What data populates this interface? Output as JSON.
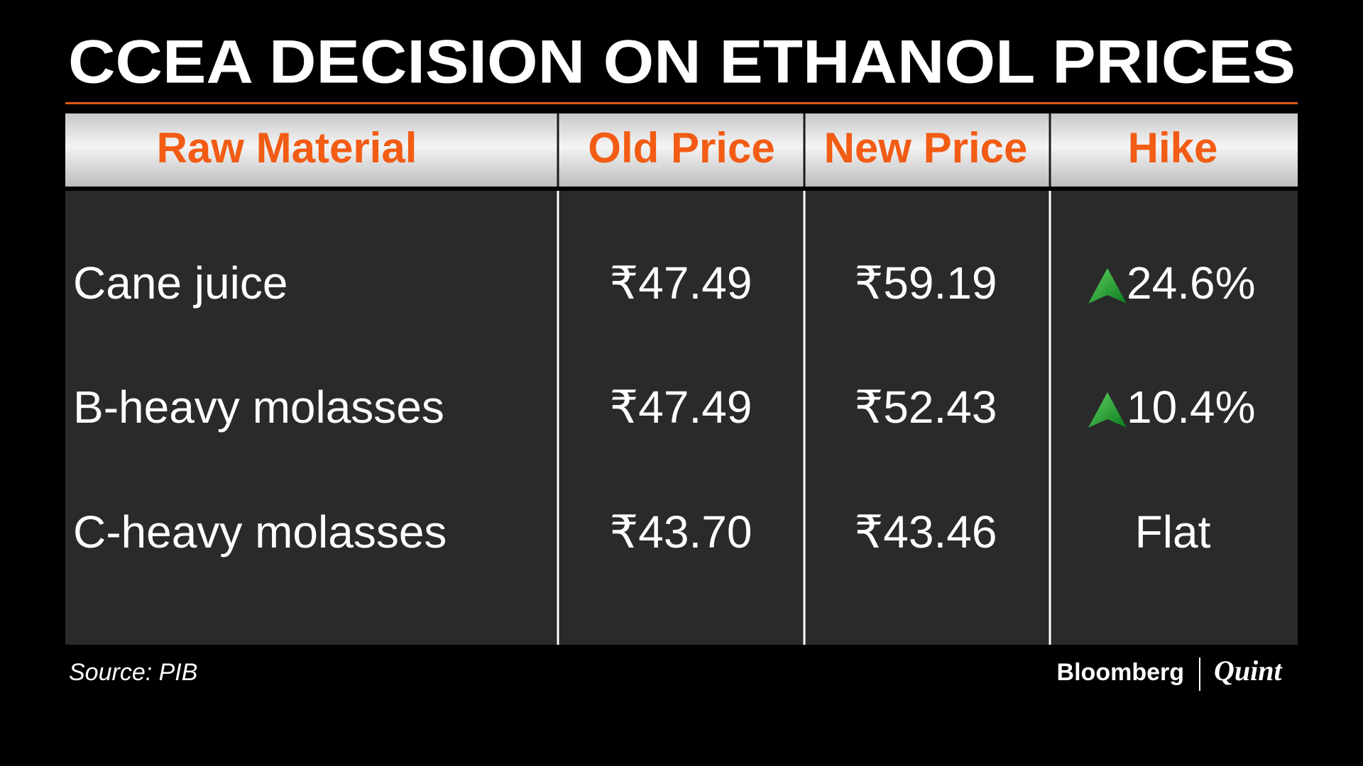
{
  "header": {
    "title": "CCEA DECISION ON ETHANOL PRICES"
  },
  "table": {
    "columns": [
      "Raw Material",
      "Old Price",
      "New Price",
      "Hike"
    ],
    "rows": [
      [
        "Cane juice",
        "₹47.49",
        "₹59.19",
        "24.6%"
      ],
      [
        "B-heavy molasses",
        "₹47.49",
        "₹52.43",
        "10.4%"
      ],
      [
        "C-heavy molasses",
        "₹43.70",
        "₹43.46",
        "Flat"
      ]
    ]
  },
  "footer": {
    "source": "Source: PIB",
    "brand": "Bloomberg",
    "brand_sub": "Quint"
  }
}
